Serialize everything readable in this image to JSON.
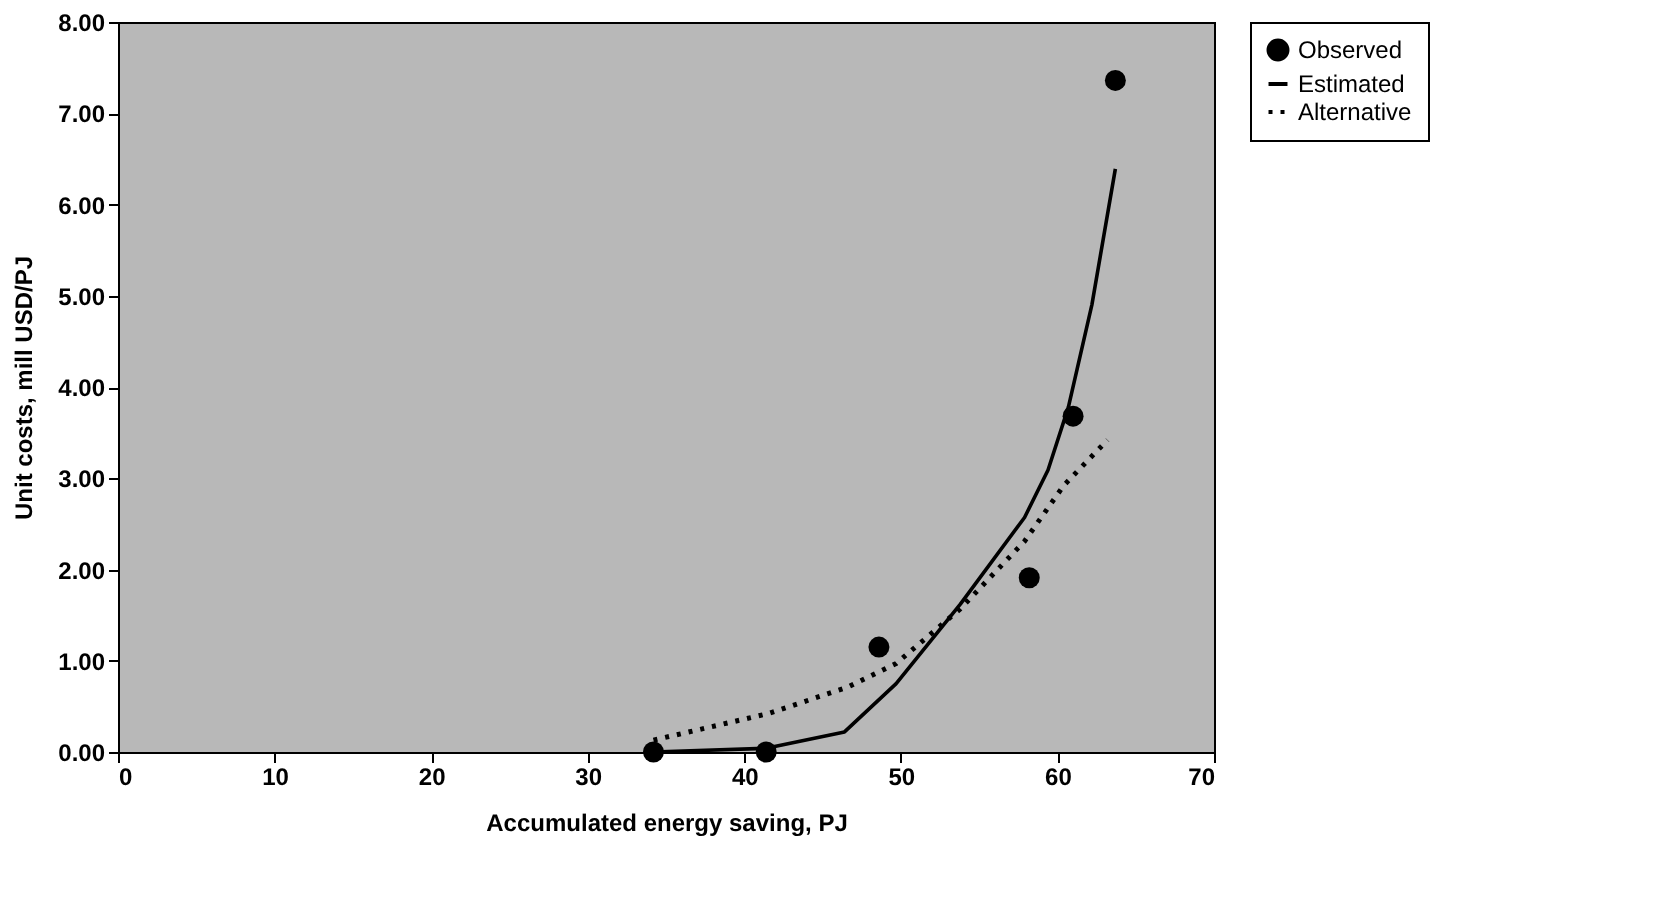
{
  "chart_data": {
    "type": "line",
    "xlabel": "Accumulated energy saving, PJ",
    "ylabel": "Unit costs, mill USD/PJ",
    "xlim": [
      0,
      70
    ],
    "xticks": [
      0,
      10,
      20,
      30,
      40,
      50,
      60,
      70
    ],
    "ylim": [
      0,
      8
    ],
    "yticks": [
      {
        "value": 0,
        "label": "0.00"
      },
      {
        "value": 1,
        "label": "1.00"
      },
      {
        "value": 2,
        "label": "2.00"
      },
      {
        "value": 3,
        "label": "3.00"
      },
      {
        "value": 4,
        "label": "4.00"
      },
      {
        "value": 5,
        "label": "5.00"
      },
      {
        "value": 6,
        "label": "6.00"
      },
      {
        "value": 7,
        "label": "7.00"
      },
      {
        "value": 8,
        "label": "8.00"
      }
    ],
    "grid": false,
    "legend": "right",
    "series": [
      {
        "name": "Observed",
        "type": "scatter",
        "marker": "circle",
        "color": "#000000",
        "x": [
          34.2,
          41.4,
          48.6,
          58.2,
          61.0,
          63.7
        ],
        "values": [
          0,
          0,
          1.15,
          1.91,
          3.68,
          7.36
        ]
      },
      {
        "name": "Estimated",
        "line_style": "solid",
        "color": "#000000",
        "x": [
          34.2,
          41.4,
          46.4,
          49.7,
          53.8,
          57.9,
          59.4,
          60.7,
          62.2,
          63.7
        ],
        "values": [
          0,
          0.04,
          0.22,
          0.75,
          1.62,
          2.57,
          3.09,
          3.78,
          4.9,
          6.39
        ]
      },
      {
        "name": "Alternative",
        "line_style": "dotted",
        "color": "#000000",
        "x": [
          34.2,
          41.5,
          46.6,
          49.7,
          53.8,
          57.9,
          60.4,
          63.2
        ],
        "values": [
          0.13,
          0.42,
          0.71,
          0.97,
          1.57,
          2.31,
          2.92,
          3.42
        ]
      }
    ]
  }
}
